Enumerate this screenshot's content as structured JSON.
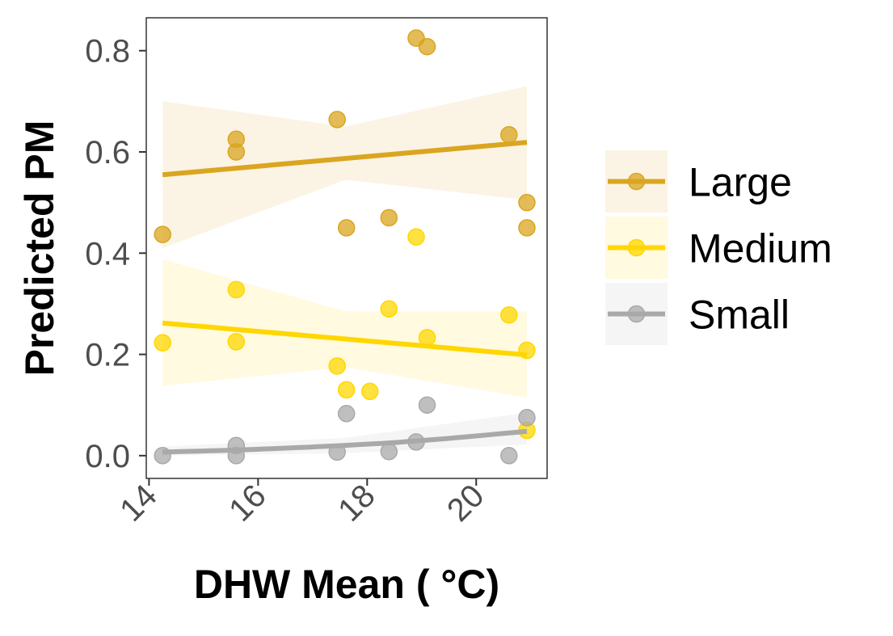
{
  "chart_data": {
    "type": "scatter",
    "title": "",
    "xlabel": "DHW Mean ( °C)",
    "ylabel": "Predicted PM",
    "xlim": [
      13.95,
      21.3
    ],
    "ylim": [
      -0.045,
      0.865
    ],
    "x_ticks": [
      14,
      16,
      18,
      20
    ],
    "y_ticks": [
      0.0,
      0.2,
      0.4,
      0.6,
      0.8
    ],
    "x_tick_labels": [
      "14",
      "16",
      "18",
      "20"
    ],
    "y_tick_labels": [
      "0.0",
      "0.2",
      "0.4",
      "0.6",
      "0.8"
    ],
    "grid": false,
    "legend_position": "right",
    "series": [
      {
        "name": "Large",
        "color": "#DAA520",
        "points": [
          {
            "x": 14.25,
            "y": 0.437
          },
          {
            "x": 15.6,
            "y": 0.625
          },
          {
            "x": 15.6,
            "y": 0.6
          },
          {
            "x": 17.45,
            "y": 0.664
          },
          {
            "x": 17.62,
            "y": 0.45
          },
          {
            "x": 18.4,
            "y": 0.47
          },
          {
            "x": 18.9,
            "y": 0.825
          },
          {
            "x": 19.1,
            "y": 0.808
          },
          {
            "x": 20.6,
            "y": 0.634
          },
          {
            "x": 20.93,
            "y": 0.5
          },
          {
            "x": 20.93,
            "y": 0.45
          }
        ],
        "fit": {
          "x": [
            14.25,
            20.93
          ],
          "y": [
            0.555,
            0.619
          ]
        },
        "ci_band": {
          "x": [
            14.25,
            17.6,
            20.93
          ],
          "lower": [
            0.41,
            0.545,
            0.505
          ],
          "upper": [
            0.7,
            0.65,
            0.73
          ]
        }
      },
      {
        "name": "Medium",
        "color": "#FFD700",
        "points": [
          {
            "x": 14.25,
            "y": 0.223
          },
          {
            "x": 15.6,
            "y": 0.328
          },
          {
            "x": 15.6,
            "y": 0.225
          },
          {
            "x": 17.45,
            "y": 0.177
          },
          {
            "x": 17.62,
            "y": 0.13
          },
          {
            "x": 18.05,
            "y": 0.127
          },
          {
            "x": 18.4,
            "y": 0.29
          },
          {
            "x": 18.9,
            "y": 0.432
          },
          {
            "x": 19.1,
            "y": 0.233
          },
          {
            "x": 20.6,
            "y": 0.278
          },
          {
            "x": 20.93,
            "y": 0.208
          },
          {
            "x": 20.93,
            "y": 0.05
          }
        ],
        "fit": {
          "x": [
            14.25,
            20.93
          ],
          "y": [
            0.262,
            0.199
          ]
        },
        "ci_band": {
          "x": [
            14.25,
            17.6,
            20.93
          ],
          "lower": [
            0.138,
            0.175,
            0.115
          ],
          "upper": [
            0.388,
            0.285,
            0.285
          ]
        }
      },
      {
        "name": "Small",
        "color": "#A9A9A9",
        "points": [
          {
            "x": 14.25,
            "y": 0.0
          },
          {
            "x": 15.6,
            "y": 0.02
          },
          {
            "x": 15.6,
            "y": 0.0
          },
          {
            "x": 17.45,
            "y": 0.007
          },
          {
            "x": 17.62,
            "y": 0.083
          },
          {
            "x": 18.4,
            "y": 0.008
          },
          {
            "x": 18.9,
            "y": 0.027
          },
          {
            "x": 19.1,
            "y": 0.1
          },
          {
            "x": 20.6,
            "y": 0.0
          },
          {
            "x": 20.93,
            "y": 0.075
          }
        ],
        "fit": {
          "x": [
            14.25,
            15.6,
            17.0,
            18.4,
            19.5,
            20.93
          ],
          "y": [
            0.007,
            0.011,
            0.017,
            0.025,
            0.034,
            0.048
          ]
        },
        "ci_band": {
          "x": [
            14.25,
            17.6,
            20.93
          ],
          "lower": [
            0.0,
            0.005,
            0.022
          ],
          "upper": [
            0.018,
            0.035,
            0.085
          ]
        }
      }
    ]
  }
}
